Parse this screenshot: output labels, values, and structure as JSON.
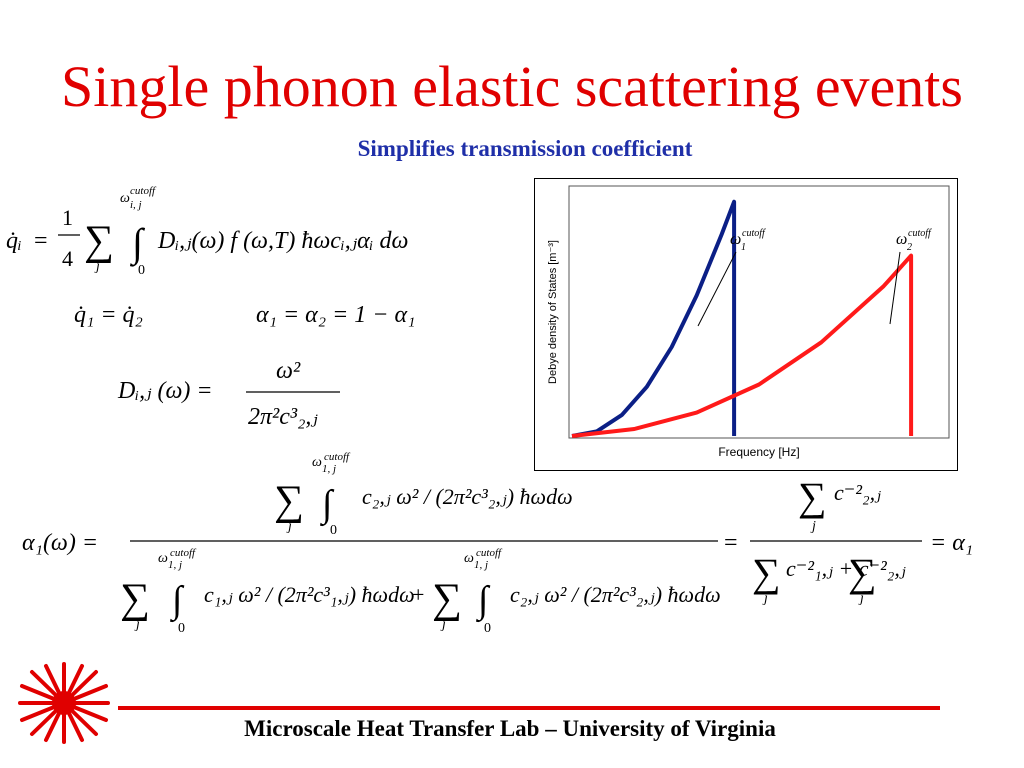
{
  "colors": {
    "title": "#e00000",
    "subtitle": "#1f2fa8",
    "accent": "#e00000",
    "series1": "#0b1f86",
    "series2": "#ff1a1a"
  },
  "title": "Single phonon elastic scattering events",
  "subtitle": "Simplifies transmission coefficient",
  "footer": "Microscale Heat Transfer Lab – University of Virginia",
  "logo_icon": "red-sunburst-icon",
  "equations": {
    "eq1": {
      "lhs": "q̇ᵢ",
      "eq": "=",
      "frac_num": "1",
      "frac_den": "4",
      "sum": "∑",
      "sum_idx": "j",
      "int": "∫",
      "int_low": "0",
      "int_up": "ω",
      "int_up_sub": "i, j",
      "int_up_sup": "cutoff",
      "body": "Dᵢ,ⱼ(ω) f (ω,T) ħωcᵢ,ⱼαᵢ dω"
    },
    "eq2": {
      "left": "q̇₁ = q̇₂",
      "right": "α₁ = α₂ = 1 − α₁"
    },
    "eq3": {
      "lhs": "Dᵢ,ⱼ (ω) =",
      "num": "ω²",
      "den": "2π²c³₂,ⱼ"
    },
    "eq4": {
      "lhs": "α₁(ω) =",
      "num": "c₂,ⱼ  ω² / (2π²c³₂,ⱼ) ħωdω",
      "den_left": "c₁,ⱼ  ω² / (2π²c³₁,ⱼ) ħωdω",
      "plus": "+",
      "den_right": "c₂,ⱼ  ω² / (2π²c³₂,ⱼ) ħωdω",
      "mid_eq": "=",
      "rhs_num": "c⁻²₂,ⱼ",
      "rhs_den": "c⁻²₁,ⱼ + c⁻²₂,ⱼ",
      "final": "= α₁",
      "sum_idx": "j",
      "int_low": "0",
      "int_up_sup": "cutoff",
      "int_up_sub_1": "1, j",
      "int_up_sub_2": "1, j"
    }
  },
  "chart_data": {
    "type": "line",
    "xlabel": "Frequency [Hz]",
    "ylabel": "Debye density of States [m⁻³]",
    "series": [
      {
        "values": [
          [
            0,
            0
          ],
          [
            0.1,
            0.02
          ],
          [
            0.2,
            0.09
          ],
          [
            0.3,
            0.21
          ],
          [
            0.4,
            0.38
          ],
          [
            0.5,
            0.6
          ],
          [
            0.6,
            0.86
          ],
          [
            0.65,
            1.0
          ],
          [
            0.65,
            0
          ]
        ],
        "color": "#0b1f86"
      },
      {
        "values": [
          [
            0,
            0
          ],
          [
            0.25,
            0.03
          ],
          [
            0.5,
            0.1
          ],
          [
            0.75,
            0.22
          ],
          [
            1.0,
            0.4
          ],
          [
            1.25,
            0.64
          ],
          [
            1.36,
            0.77
          ],
          [
            1.36,
            0
          ]
        ],
        "color": "#ff1a1a"
      }
    ],
    "annotations": [
      {
        "symbol": "ω",
        "sub": "1",
        "sup": "cutoff"
      },
      {
        "symbol": "ω",
        "sub": "2",
        "sup": "cutoff"
      }
    ],
    "xlim": [
      0,
      1.5
    ],
    "ylim": [
      0,
      1.05
    ]
  }
}
